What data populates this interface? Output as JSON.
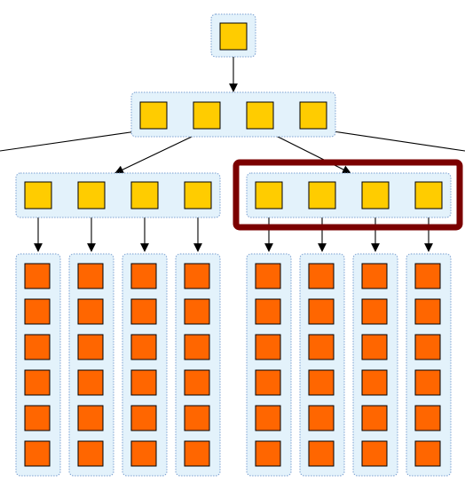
{
  "colors": {
    "background": "#ffffff",
    "container_fill": "#e3f2fb",
    "container_border": "#7a9fd0",
    "node_yellow": "#ffcc00",
    "node_orange": "#ff6600",
    "node_stroke": "#000000",
    "edge": "#000000",
    "highlight": "#7b0000"
  },
  "tree": {
    "root_nodes": 1,
    "level1_nodes": 4,
    "level2_groups": 2,
    "level2_nodes_per_group": 4,
    "leaf_columns": 8,
    "leaves_per_column": 6,
    "highlighted_group": 2
  }
}
